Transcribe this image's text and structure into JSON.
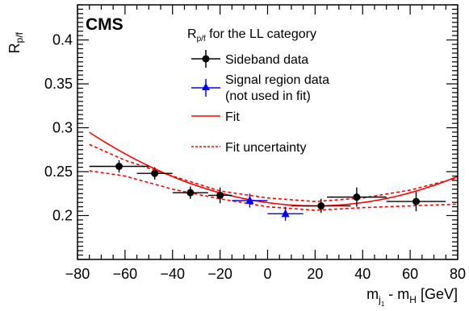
{
  "chart_data": {
    "type": "scatter",
    "experiment_label": "CMS",
    "legend_title": "R_{p/f} for the LL category",
    "legend": {
      "placement": "top-right",
      "entries": [
        {
          "key": "sideband",
          "label": "Sideband data"
        },
        {
          "key": "signal",
          "label_lines": [
            "Signal region data",
            "(not used in fit)"
          ]
        },
        {
          "key": "fit",
          "label": "Fit"
        },
        {
          "key": "fit_unc",
          "label": "Fit uncertainty"
        }
      ]
    },
    "xlabel": {
      "main": "m",
      "sub": "j",
      "subsub": "1",
      "rest": " - m",
      "sub2": "H",
      "unit": " [GeV]"
    },
    "ylabel": {
      "main": "R",
      "sub": "p/f"
    },
    "xlim": [
      -80,
      80
    ],
    "ylim": [
      0.15,
      0.44
    ],
    "x_ticks": [
      -80,
      -60,
      -40,
      -20,
      0,
      20,
      40,
      60,
      80
    ],
    "y_ticks": [
      0.2,
      0.25,
      0.3,
      0.35,
      0.4
    ],
    "grid": false,
    "colors": {
      "sideband": "#000000",
      "signal": "#0000ff",
      "fit": "#ff0000"
    },
    "series": [
      {
        "key": "sideband",
        "points": [
          {
            "x": -62.5,
            "y": 0.256,
            "xerr": 12.5,
            "yerr": 0.007
          },
          {
            "x": -47.5,
            "y": 0.248,
            "xerr": 7.5,
            "yerr": 0.007
          },
          {
            "x": -32.5,
            "y": 0.226,
            "xerr": 7.5,
            "yerr": 0.007
          },
          {
            "x": -20,
            "y": 0.223,
            "xerr": 5,
            "yerr": 0.009
          },
          {
            "x": 22.5,
            "y": 0.211,
            "xerr": 12.5,
            "yerr": 0.008
          },
          {
            "x": 37.5,
            "y": 0.221,
            "xerr": 12.5,
            "yerr": 0.011
          },
          {
            "x": 62.5,
            "y": 0.216,
            "xerr": 12.5,
            "yerr": 0.011
          }
        ]
      },
      {
        "key": "signal",
        "points": [
          {
            "x": -7.5,
            "y": 0.217,
            "xerr": 7.5,
            "yerr": 0.008
          },
          {
            "x": 7.5,
            "y": 0.202,
            "xerr": 7.5,
            "yerr": 0.008
          }
        ]
      }
    ],
    "fit": {
      "x_range": [
        -75,
        80
      ],
      "coeffs": {
        "a": 0.2147,
        "b": -0.00037,
        "c": 9.3e-06
      },
      "band": [
        {
          "x": -75,
          "lo": 0.251,
          "hi": 0.281
        },
        {
          "x": -60,
          "lo": 0.245,
          "hi": 0.263
        },
        {
          "x": -40,
          "lo": 0.23,
          "hi": 0.245
        },
        {
          "x": -20,
          "lo": 0.219,
          "hi": 0.228
        },
        {
          "x": 0,
          "lo": 0.21,
          "hi": 0.22
        },
        {
          "x": 20,
          "lo": 0.206,
          "hi": 0.216
        },
        {
          "x": 40,
          "lo": 0.209,
          "hi": 0.22
        },
        {
          "x": 60,
          "lo": 0.211,
          "hi": 0.229
        },
        {
          "x": 80,
          "lo": 0.213,
          "hi": 0.243
        }
      ]
    }
  }
}
